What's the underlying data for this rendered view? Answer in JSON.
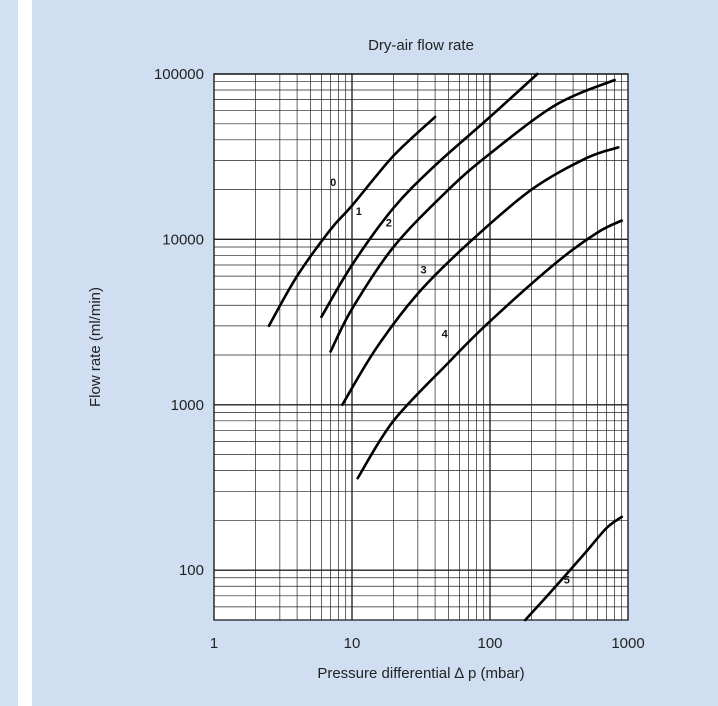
{
  "colors": {
    "panel_background": "#cfdff1",
    "left_strip": "#d3e2f3",
    "plot_background": "#ffffff",
    "grid": "#222222",
    "curve": "#000000"
  },
  "chart_data": {
    "type": "line",
    "title": "Dry-air flow rate",
    "xlabel": "Pressure differential ∆ p (mbar)",
    "ylabel": "Flow rate (ml/min)",
    "x_scale": "log",
    "y_scale": "log",
    "xlim": [
      1,
      1000
    ],
    "ylim": [
      50,
      100000
    ],
    "x_ticks": [
      1,
      10,
      100,
      1000
    ],
    "x_tick_labels": [
      "1",
      "10",
      "100",
      "1000"
    ],
    "y_ticks": [
      100,
      1000,
      10000,
      100000
    ],
    "y_tick_labels": [
      "100",
      "1000",
      "10000",
      "100000"
    ],
    "grid": true,
    "legend": "none",
    "series": [
      {
        "name": "0",
        "points": [
          [
            2.5,
            3000
          ],
          [
            4,
            6000
          ],
          [
            7,
            11500
          ],
          [
            10,
            16000
          ],
          [
            20,
            32000
          ],
          [
            40,
            55000
          ]
        ]
      },
      {
        "name": "1",
        "points": [
          [
            6,
            3400
          ],
          [
            10,
            7000
          ],
          [
            20,
            15500
          ],
          [
            40,
            28000
          ],
          [
            100,
            55000
          ],
          [
            220,
            100000
          ]
        ]
      },
      {
        "name": "2",
        "points": [
          [
            7,
            2100
          ],
          [
            10,
            3800
          ],
          [
            20,
            9000
          ],
          [
            50,
            20000
          ],
          [
            100,
            33000
          ],
          [
            300,
            65000
          ],
          [
            800,
            92000
          ]
        ]
      },
      {
        "name": "3",
        "points": [
          [
            8.5,
            1000
          ],
          [
            15,
            2200
          ],
          [
            30,
            4700
          ],
          [
            70,
            9500
          ],
          [
            200,
            20000
          ],
          [
            500,
            31000
          ],
          [
            850,
            36000
          ]
        ]
      },
      {
        "name": "4",
        "points": [
          [
            11,
            360
          ],
          [
            20,
            800
          ],
          [
            50,
            1800
          ],
          [
            100,
            3200
          ],
          [
            300,
            7200
          ],
          [
            600,
            11000
          ],
          [
            900,
            13000
          ]
        ]
      },
      {
        "name": "5",
        "points": [
          [
            180,
            50
          ],
          [
            300,
            80
          ],
          [
            500,
            130
          ],
          [
            700,
            180
          ],
          [
            900,
            210
          ]
        ]
      }
    ],
    "curve_labels": [
      {
        "text": "0",
        "x": 7.3,
        "y": 21000
      },
      {
        "text": "1",
        "x": 11.2,
        "y": 14000
      },
      {
        "text": "2",
        "x": 18.5,
        "y": 12000
      },
      {
        "text": "3",
        "x": 33,
        "y": 6200
      },
      {
        "text": "4",
        "x": 47,
        "y": 2550
      },
      {
        "text": "5",
        "x": 360,
        "y": 83
      }
    ]
  }
}
